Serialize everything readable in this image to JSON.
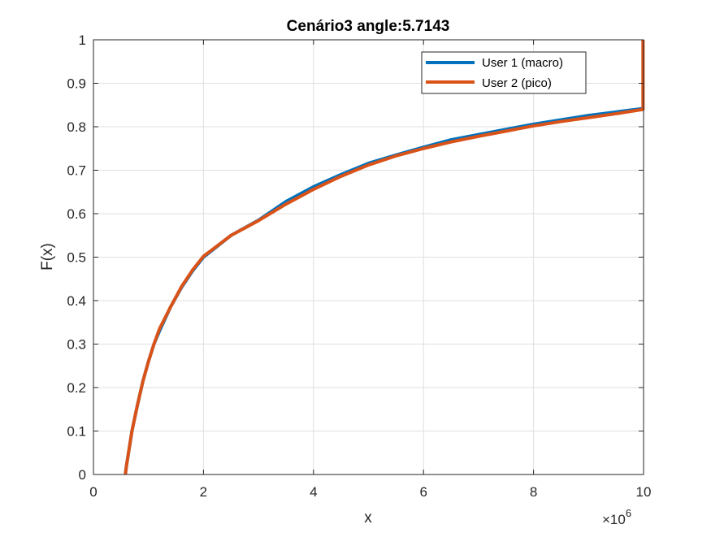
{
  "chart_data": {
    "type": "line",
    "title": "Cenário3 angle:5.7143",
    "xlabel": "x",
    "ylabel": "F(x)",
    "x_multiplier": "×10",
    "x_multiplier_exp": "6",
    "xlim": [
      0,
      10
    ],
    "ylim": [
      0,
      1
    ],
    "x_ticks": [
      "0",
      "2",
      "4",
      "6",
      "8",
      "10"
    ],
    "y_ticks": [
      "0",
      "0.1",
      "0.2",
      "0.3",
      "0.4",
      "0.5",
      "0.6",
      "0.7",
      "0.8",
      "0.9",
      "1"
    ],
    "grid": true,
    "legend_position": "top-right",
    "series": [
      {
        "name": "User 1 (macro)",
        "color": "#0072BD",
        "x": [
          0.58,
          0.6,
          0.65,
          0.7,
          0.8,
          0.9,
          1.0,
          1.1,
          1.2,
          1.4,
          1.6,
          1.8,
          2.0,
          2.5,
          3.0,
          3.5,
          4.0,
          4.5,
          5.0,
          5.5,
          6.0,
          6.5,
          7.0,
          7.5,
          8.0,
          8.5,
          9.0,
          9.5,
          10.0
        ],
        "y": [
          0.0,
          0.02,
          0.06,
          0.1,
          0.16,
          0.215,
          0.26,
          0.3,
          0.33,
          0.385,
          0.43,
          0.468,
          0.5,
          0.55,
          0.585,
          0.628,
          0.662,
          0.69,
          0.716,
          0.735,
          0.753,
          0.77,
          0.782,
          0.794,
          0.806,
          0.816,
          0.826,
          0.834,
          0.842
        ]
      },
      {
        "name": "User 2 (pico)",
        "color": "#D95319",
        "x": [
          0.58,
          0.6,
          0.65,
          0.7,
          0.8,
          0.9,
          1.0,
          1.1,
          1.2,
          1.4,
          1.6,
          1.8,
          2.0,
          2.5,
          3.0,
          3.5,
          4.0,
          4.5,
          5.0,
          5.5,
          6.0,
          6.5,
          7.0,
          7.5,
          8.0,
          8.5,
          9.0,
          9.5,
          9.99,
          9.99
        ],
        "y": [
          0.0,
          0.02,
          0.06,
          0.1,
          0.16,
          0.215,
          0.26,
          0.3,
          0.335,
          0.385,
          0.432,
          0.47,
          0.502,
          0.55,
          0.584,
          0.622,
          0.656,
          0.686,
          0.712,
          0.733,
          0.75,
          0.765,
          0.778,
          0.79,
          0.802,
          0.812,
          0.821,
          0.83,
          0.84,
          1.0
        ]
      }
    ]
  }
}
